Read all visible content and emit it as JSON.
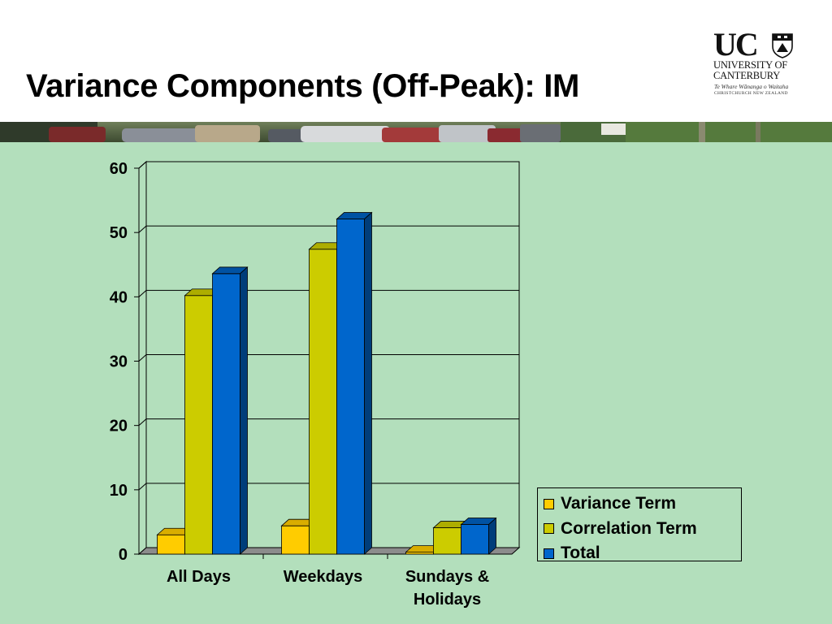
{
  "slide": {
    "title": "Variance Components (Off-Peak): IM"
  },
  "logo": {
    "line1": "UC",
    "line2": "UNIVERSITY OF",
    "line3": "CANTERBURY",
    "line4": "Te Whare Wānanga o Waitaha",
    "line5": "CHRISTCHURCH NEW ZEALAND"
  },
  "colors": {
    "background": "#b3dfbc",
    "variance_term": "#ffcc00",
    "correlation_term": "#cccc00",
    "total": "#0066cc"
  },
  "chart_data": {
    "type": "bar",
    "title": "",
    "xlabel": "",
    "ylabel": "",
    "categories": [
      "All Days",
      "Weekdays",
      "Sundays & Holidays"
    ],
    "series": [
      {
        "name": "Variance Term",
        "values": [
          3,
          4.4,
          0.3
        ]
      },
      {
        "name": "Correlation Term",
        "values": [
          40.2,
          47.4,
          4.1
        ]
      },
      {
        "name": "Total",
        "values": [
          43.6,
          52.1,
          4.6
        ]
      }
    ],
    "ylim": [
      0,
      60
    ],
    "yticks": [
      "0",
      "10",
      "20",
      "30",
      "40",
      "50",
      "60"
    ],
    "grid": true,
    "legend_position": "right",
    "three_d": true
  }
}
